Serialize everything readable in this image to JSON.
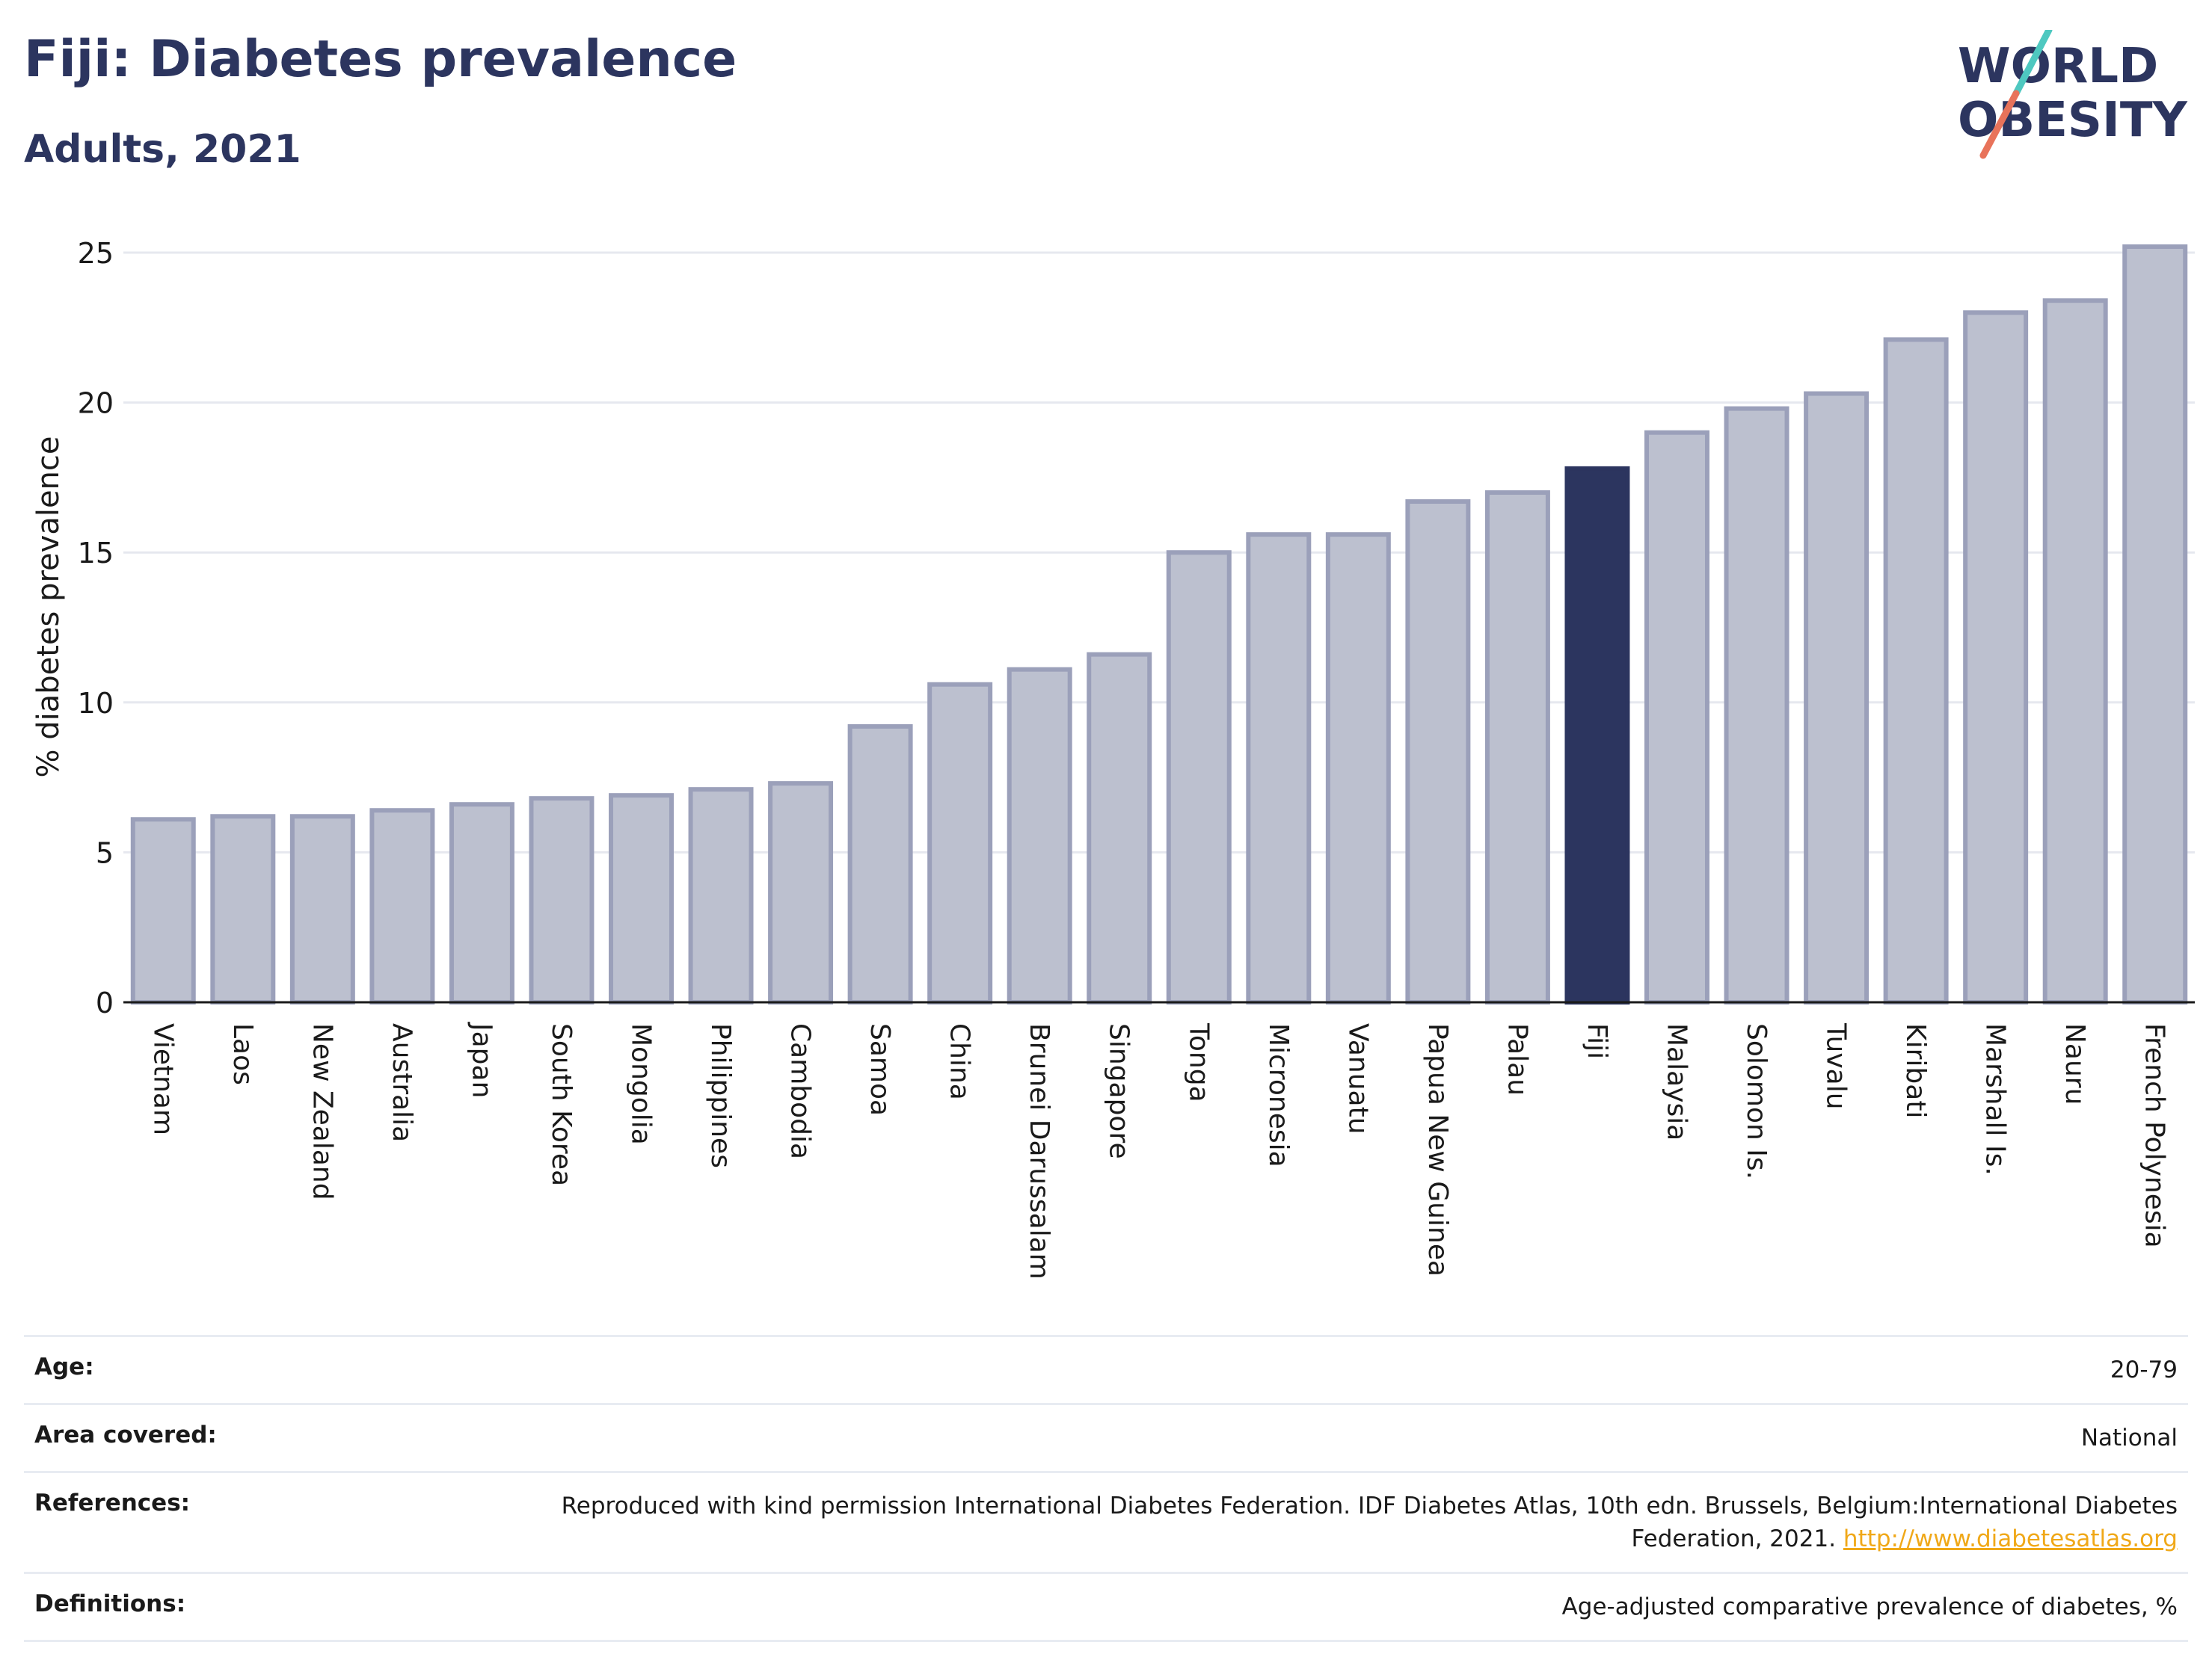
{
  "header": {
    "title": "Fiji: Diabetes prevalence",
    "subtitle": "Adults, 2021"
  },
  "logo": {
    "line1": "WORLD",
    "line2": "OBESITY",
    "slash_colors": [
      "#4ec8c0",
      "#e8735a"
    ],
    "text_color": "#2c355f"
  },
  "chart_data": {
    "type": "bar",
    "ylabel": "% diabetes prevalence",
    "ylim": [
      0,
      25
    ],
    "yticks": [
      0,
      5,
      10,
      15,
      20,
      25
    ],
    "grid": true,
    "highlight": "Fiji",
    "colors": {
      "bar": "#bcc0cf",
      "bar_edge": "#9ba0ba",
      "highlight": "#2c355f"
    },
    "categories": [
      "Vietnam",
      "Laos",
      "New Zealand",
      "Australia",
      "Japan",
      "South Korea",
      "Mongolia",
      "Philippines",
      "Cambodia",
      "Samoa",
      "China",
      "Brunei Darussalam",
      "Singapore",
      "Tonga",
      "Micronesia",
      "Vanuatu",
      "Papua New Guinea",
      "Palau",
      "Fiji",
      "Malaysia",
      "Solomon Is.",
      "Tuvalu",
      "Kiribati",
      "Marshall Is.",
      "Nauru",
      "French Polynesia"
    ],
    "values": [
      6.1,
      6.2,
      6.2,
      6.4,
      6.6,
      6.8,
      6.9,
      7.1,
      7.3,
      9.2,
      10.6,
      11.1,
      11.6,
      15.0,
      15.6,
      15.6,
      16.7,
      17.0,
      17.8,
      19.0,
      19.8,
      20.3,
      22.1,
      23.0,
      23.4,
      25.2
    ]
  },
  "meta": {
    "rows": [
      {
        "key": "Age:",
        "value": "20-79"
      },
      {
        "key": "Area covered:",
        "value": "National"
      },
      {
        "key": "References:",
        "value": "Reproduced with kind permission International Diabetes Federation.  IDF Diabetes Atlas, 10th edn. Brussels, Belgium:International Diabetes Federation, 2021.",
        "link": "http://www.diabetesatlas.org"
      },
      {
        "key": "Definitions:",
        "value": "Age-adjusted comparative prevalence of diabetes, %"
      }
    ]
  }
}
